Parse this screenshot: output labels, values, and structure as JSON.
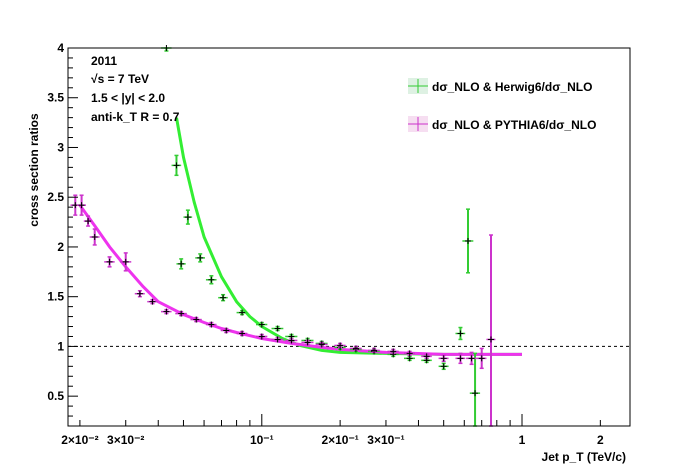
{
  "chart_data": {
    "type": "scatter",
    "title": "",
    "xlabel": "Jet p_T (TeV/c)",
    "ylabel": "cross section ratios",
    "xscale": "log",
    "xlim": [
      0.018,
      2.6
    ],
    "ylim": [
      0.2,
      4.0
    ],
    "x_tick_labels": [
      "2×10⁻²",
      "3×10⁻²",
      "10⁻¹",
      "2×10⁻¹",
      "3×10⁻¹",
      "1",
      "2"
    ],
    "x_tick_values": [
      0.02,
      0.03,
      0.1,
      0.2,
      0.3,
      1,
      2
    ],
    "y_tick_labels": [
      "0.5",
      "1",
      "1.5",
      "2",
      "2.5",
      "3",
      "3.5",
      "4"
    ],
    "y_tick_values": [
      0.5,
      1,
      1.5,
      2,
      2.5,
      3,
      3.5,
      4
    ],
    "reference_line": 1.0,
    "annotations": [
      "2011",
      "√s = 7 TeV",
      "1.5 < |y| < 2.0",
      "anti-k_T R = 0.7"
    ],
    "legend_placement": "top-right",
    "series": [
      {
        "name": "dσ_NLO & Herwig6/dσ_NLO",
        "color": "#33cc33",
        "points": [
          {
            "x": 0.043,
            "y": 4.0,
            "xerr": 0.002,
            "yerr": 0.03
          },
          {
            "x": 0.047,
            "y": 2.82,
            "xerr": 0.002,
            "yerr": 0.1
          },
          {
            "x": 0.049,
            "y": 1.83,
            "xerr": 0.002,
            "yerr": 0.05
          },
          {
            "x": 0.052,
            "y": 2.3,
            "xerr": 0.002,
            "yerr": 0.07
          },
          {
            "x": 0.058,
            "y": 1.89,
            "xerr": 0.0025,
            "yerr": 0.04
          },
          {
            "x": 0.064,
            "y": 1.67,
            "xerr": 0.003,
            "yerr": 0.04
          },
          {
            "x": 0.071,
            "y": 1.49,
            "xerr": 0.003,
            "yerr": 0.03
          },
          {
            "x": 0.084,
            "y": 1.34,
            "xerr": 0.004,
            "yerr": 0.02
          },
          {
            "x": 0.1,
            "y": 1.22,
            "xerr": 0.005,
            "yerr": 0.02
          },
          {
            "x": 0.115,
            "y": 1.18,
            "xerr": 0.006,
            "yerr": 0.02
          },
          {
            "x": 0.13,
            "y": 1.1,
            "xerr": 0.007,
            "yerr": 0.02
          },
          {
            "x": 0.15,
            "y": 1.06,
            "xerr": 0.008,
            "yerr": 0.02
          },
          {
            "x": 0.17,
            "y": 1.03,
            "xerr": 0.009,
            "yerr": 0.02
          },
          {
            "x": 0.2,
            "y": 0.99,
            "xerr": 0.01,
            "yerr": 0.02
          },
          {
            "x": 0.23,
            "y": 0.97,
            "xerr": 0.012,
            "yerr": 0.02
          },
          {
            "x": 0.27,
            "y": 0.95,
            "xerr": 0.014,
            "yerr": 0.02
          },
          {
            "x": 0.32,
            "y": 0.92,
            "xerr": 0.016,
            "yerr": 0.02
          },
          {
            "x": 0.37,
            "y": 0.88,
            "xerr": 0.018,
            "yerr": 0.02
          },
          {
            "x": 0.43,
            "y": 0.86,
            "xerr": 0.02,
            "yerr": 0.02
          },
          {
            "x": 0.5,
            "y": 0.8,
            "xerr": 0.022,
            "yerr": 0.03
          },
          {
            "x": 0.58,
            "y": 1.13,
            "xerr": 0.025,
            "yerr": 0.06
          },
          {
            "x": 0.62,
            "y": 2.06,
            "xerr": 0.03,
            "yerr": 0.32
          },
          {
            "x": 0.66,
            "y": 0.53,
            "xerr": 0.03,
            "yerr": 0.4
          }
        ]
      },
      {
        "name": "dσ_NLO & PYTHIA6/dσ_NLO",
        "color": "#cc33cc",
        "points": [
          {
            "x": 0.0192,
            "y": 2.42,
            "xerr": 0.0008,
            "yerr": 0.1
          },
          {
            "x": 0.0203,
            "y": 2.42,
            "xerr": 0.0008,
            "yerr": 0.1
          },
          {
            "x": 0.0215,
            "y": 2.26,
            "xerr": 0.0008,
            "yerr": 0.05
          },
          {
            "x": 0.0228,
            "y": 2.1,
            "xerr": 0.001,
            "yerr": 0.08
          },
          {
            "x": 0.026,
            "y": 1.85,
            "xerr": 0.0012,
            "yerr": 0.05
          },
          {
            "x": 0.03,
            "y": 1.85,
            "xerr": 0.0015,
            "yerr": 0.09
          },
          {
            "x": 0.034,
            "y": 1.53,
            "xerr": 0.0015,
            "yerr": 0.03
          },
          {
            "x": 0.038,
            "y": 1.45,
            "xerr": 0.0017,
            "yerr": 0.02
          },
          {
            "x": 0.043,
            "y": 1.35,
            "xerr": 0.002,
            "yerr": 0.02
          },
          {
            "x": 0.049,
            "y": 1.33,
            "xerr": 0.0025,
            "yerr": 0.02
          },
          {
            "x": 0.056,
            "y": 1.27,
            "xerr": 0.0028,
            "yerr": 0.02
          },
          {
            "x": 0.064,
            "y": 1.22,
            "xerr": 0.003,
            "yerr": 0.02
          },
          {
            "x": 0.073,
            "y": 1.16,
            "xerr": 0.0035,
            "yerr": 0.02
          },
          {
            "x": 0.084,
            "y": 1.13,
            "xerr": 0.004,
            "yerr": 0.02
          },
          {
            "x": 0.1,
            "y": 1.1,
            "xerr": 0.005,
            "yerr": 0.02
          },
          {
            "x": 0.115,
            "y": 1.07,
            "xerr": 0.006,
            "yerr": 0.02
          },
          {
            "x": 0.13,
            "y": 1.06,
            "xerr": 0.007,
            "yerr": 0.02
          },
          {
            "x": 0.15,
            "y": 1.04,
            "xerr": 0.008,
            "yerr": 0.02
          },
          {
            "x": 0.17,
            "y": 1.02,
            "xerr": 0.009,
            "yerr": 0.02
          },
          {
            "x": 0.2,
            "y": 1.01,
            "xerr": 0.01,
            "yerr": 0.02
          },
          {
            "x": 0.23,
            "y": 0.98,
            "xerr": 0.012,
            "yerr": 0.02
          },
          {
            "x": 0.27,
            "y": 0.96,
            "xerr": 0.014,
            "yerr": 0.02
          },
          {
            "x": 0.32,
            "y": 0.95,
            "xerr": 0.016,
            "yerr": 0.02
          },
          {
            "x": 0.37,
            "y": 0.93,
            "xerr": 0.018,
            "yerr": 0.02
          },
          {
            "x": 0.43,
            "y": 0.9,
            "xerr": 0.02,
            "yerr": 0.02
          },
          {
            "x": 0.5,
            "y": 0.88,
            "xerr": 0.022,
            "yerr": 0.03
          },
          {
            "x": 0.58,
            "y": 0.88,
            "xerr": 0.025,
            "yerr": 0.05
          },
          {
            "x": 0.64,
            "y": 0.88,
            "xerr": 0.03,
            "yerr": 0.06
          },
          {
            "x": 0.7,
            "y": 0.88,
            "xerr": 0.03,
            "yerr": 0.1
          },
          {
            "x": 0.76,
            "y": 1.07,
            "xerr": 0.03,
            "yerr": 1.05
          }
        ]
      }
    ],
    "fits": [
      {
        "series": "dσ_NLO & Herwig6/dσ_NLO",
        "color": "#33ee33",
        "points": [
          [
            0.047,
            3.3
          ],
          [
            0.05,
            2.9
          ],
          [
            0.055,
            2.45
          ],
          [
            0.06,
            2.1
          ],
          [
            0.07,
            1.7
          ],
          [
            0.08,
            1.45
          ],
          [
            0.09,
            1.3
          ],
          [
            0.1,
            1.2
          ],
          [
            0.12,
            1.08
          ],
          [
            0.14,
            1.01
          ],
          [
            0.17,
            0.96
          ],
          [
            0.2,
            0.94
          ],
          [
            0.3,
            0.93
          ],
          [
            0.5,
            0.92
          ],
          [
            0.8,
            0.92
          ],
          [
            1.0,
            0.92
          ]
        ]
      },
      {
        "series": "dσ_NLO & PYTHIA6/dσ_NLO",
        "color": "#ee33ee",
        "points": [
          [
            0.02,
            2.42
          ],
          [
            0.023,
            2.2
          ],
          [
            0.026,
            2.0
          ],
          [
            0.03,
            1.8
          ],
          [
            0.035,
            1.6
          ],
          [
            0.04,
            1.45
          ],
          [
            0.05,
            1.32
          ],
          [
            0.06,
            1.24
          ],
          [
            0.07,
            1.18
          ],
          [
            0.08,
            1.14
          ],
          [
            0.1,
            1.08
          ],
          [
            0.13,
            1.03
          ],
          [
            0.17,
            0.99
          ],
          [
            0.2,
            0.97
          ],
          [
            0.3,
            0.94
          ],
          [
            0.5,
            0.92
          ],
          [
            0.8,
            0.92
          ],
          [
            1.0,
            0.92
          ]
        ]
      }
    ]
  }
}
